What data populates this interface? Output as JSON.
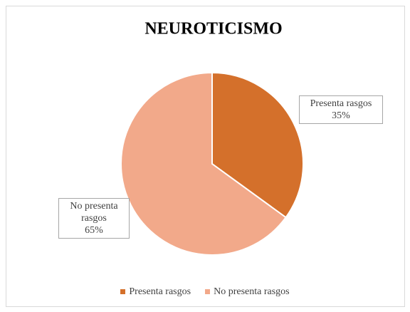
{
  "chart_data": {
    "type": "pie",
    "title": "NEUROTICISMO",
    "categories": [
      "Presenta rasgos",
      "No presenta rasgos"
    ],
    "values": [
      35,
      65
    ],
    "value_labels": [
      "35%",
      "65%"
    ],
    "colors": [
      "#d4702b",
      "#f2a98a"
    ],
    "legend": "bottom"
  }
}
